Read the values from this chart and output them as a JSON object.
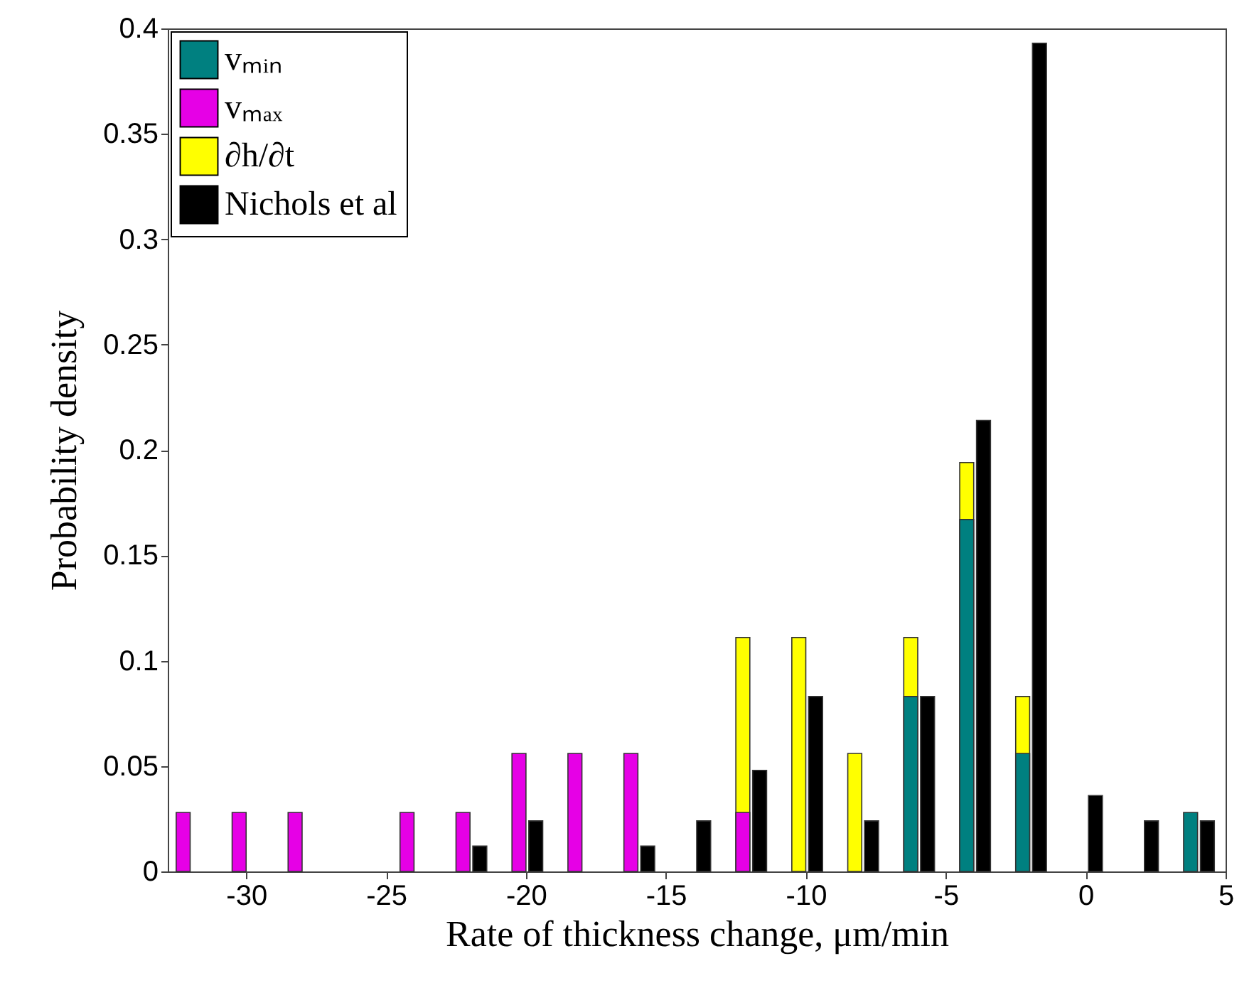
{
  "chart_data": {
    "type": "bar",
    "xlabel": "Rate of thickness change, μm/min",
    "ylabel": "Probability density",
    "xlim": [
      -32.8,
      5
    ],
    "xticks": [
      -30,
      -25,
      -20,
      -15,
      -10,
      -5,
      0,
      5
    ],
    "ylim": [
      0,
      0.4
    ],
    "yticks": [
      0,
      0.05,
      0.1,
      0.15,
      0.2,
      0.25,
      0.3,
      0.35,
      0.4
    ],
    "legend": "top left",
    "series": [
      {
        "name": "vₘᵢₙ",
        "color": "#008080",
        "x": [
          -6.25,
          -4.25,
          -2.25,
          3.75
        ],
        "values": [
          0.083,
          0.167,
          0.056,
          0.028
        ]
      },
      {
        "name": "vₘₐₓ",
        "color": "#e600e6",
        "x": [
          -32.25,
          -30.25,
          -28.25,
          -24.25,
          -22.25,
          -20.25,
          -18.25,
          -16.25,
          -12.25
        ],
        "values": [
          0.028,
          0.028,
          0.028,
          0.028,
          0.028,
          0.056,
          0.056,
          0.056,
          0.028
        ]
      },
      {
        "name": "∂h/∂t",
        "color": "#ffff00",
        "x": [
          -12.25,
          -10.25,
          -8.25,
          -6.25,
          -4.25,
          -2.25
        ],
        "values": [
          0.111,
          0.111,
          0.056,
          0.111,
          0.194,
          0.083
        ]
      },
      {
        "name": "Nichols et al",
        "color": "#000000",
        "x": [
          -21.65,
          -19.65,
          -15.65,
          -13.65,
          -11.65,
          -9.65,
          -7.65,
          -5.65,
          -3.65,
          -1.65,
          0.35,
          2.35,
          4.35
        ],
        "values": [
          0.012,
          0.024,
          0.012,
          0.024,
          0.048,
          0.083,
          0.024,
          0.083,
          0.214,
          0.393,
          0.036,
          0.024,
          0.024
        ]
      }
    ]
  }
}
